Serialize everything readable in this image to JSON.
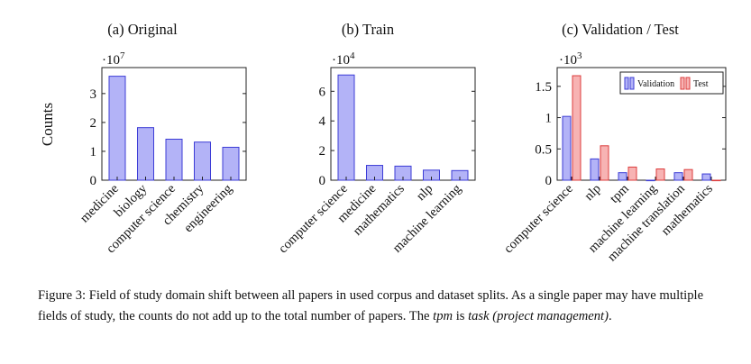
{
  "figure": {
    "y_axis_label": "Counts",
    "caption": {
      "label": "Figure 3:",
      "text": "Field of study domain shift between all papers in used corpus and dataset splits. As a single paper may have multiple fields of study, the counts do not add up to the total number of papers. The",
      "tpm": "tpm",
      "is": "is",
      "tpm_expansion": "task (project management)",
      "end": "."
    }
  },
  "colors": {
    "blue_fill": "#b3b3f7",
    "blue_stroke": "#3c3cd6",
    "red_fill": "#f7b3b3",
    "red_stroke": "#dc3c3c"
  },
  "chart_data": [
    {
      "type": "bar",
      "title": "(a) Original",
      "ylabel": "Counts",
      "scale_label": "·10",
      "scale_exp": "7",
      "categories": [
        "medicine",
        "biology",
        "computer science",
        "chemistry",
        "engineering"
      ],
      "series": [
        {
          "name": "Original",
          "values": [
            3.6,
            1.82,
            1.42,
            1.32,
            1.14
          ]
        }
      ],
      "ylim": [
        0,
        3.9
      ],
      "yticks": [
        0,
        1,
        2,
        3
      ],
      "ytick_labels": [
        "0",
        "1",
        "2",
        "3"
      ]
    },
    {
      "type": "bar",
      "title": "(b) Train",
      "scale_label": "·10",
      "scale_exp": "4",
      "categories": [
        "computer science",
        "medicine",
        "mathematics",
        "nlp",
        "machine learning"
      ],
      "series": [
        {
          "name": "Train",
          "values": [
            7.1,
            1.0,
            0.95,
            0.68,
            0.65
          ]
        }
      ],
      "ylim": [
        0,
        7.6
      ],
      "yticks": [
        0,
        2,
        4,
        6
      ],
      "ytick_labels": [
        "0",
        "2",
        "4",
        "6"
      ]
    },
    {
      "type": "bar",
      "title": "(c) Validation / Test",
      "scale_label": "·10",
      "scale_exp": "3",
      "categories": [
        "computer science",
        "nlp",
        "tpm",
        "machine learning",
        "machine translation",
        "mathematics"
      ],
      "series": [
        {
          "name": "Validation",
          "values": [
            1.02,
            0.34,
            0.12,
            0.0,
            0.12,
            0.1
          ]
        },
        {
          "name": "Test",
          "values": [
            1.67,
            0.55,
            0.21,
            0.18,
            0.17,
            0.0
          ]
        }
      ],
      "legend": "top-right",
      "ylim": [
        0,
        1.8
      ],
      "yticks": [
        0,
        0.5,
        1,
        1.5
      ],
      "ytick_labels": [
        "0",
        "0.5",
        "1",
        "1.5"
      ]
    }
  ]
}
